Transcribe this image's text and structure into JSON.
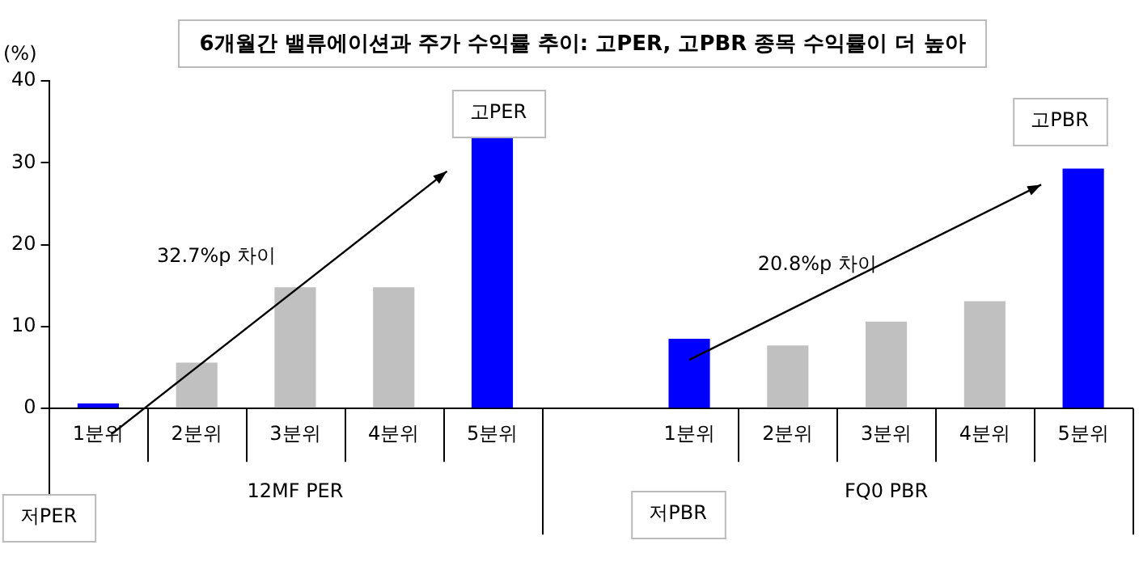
{
  "chart_data": {
    "type": "bar",
    "title": "6개월간 밸류에이션과 주가 수익률 추이: 고PER, 고PBR 종목 수익률이 더 높아",
    "ylabel": "(%)",
    "categories": [
      "1분위",
      "2분위",
      "3분위",
      "4분위",
      "5분위",
      null,
      "1분위",
      "2분위",
      "3분위",
      "4분위",
      "5분위"
    ],
    "values": [
      0.6,
      5.6,
      14.8,
      14.8,
      33.3,
      null,
      8.5,
      7.7,
      10.6,
      13.1,
      29.3
    ],
    "colors": [
      "#0000ff",
      "#c0c0c0",
      "#c0c0c0",
      "#c0c0c0",
      "#0000ff",
      "#c0c0c0",
      "#0000ff",
      "#c0c0c0",
      "#c0c0c0",
      "#c0c0c0",
      "#0000ff"
    ],
    "ylim": [
      0,
      40
    ],
    "yticks": [
      0,
      10,
      20,
      30,
      40
    ],
    "grid": false,
    "legend": false,
    "annotations": [
      "32.7%p 차이",
      "20.8%p 차이",
      "고PER",
      "고PBR",
      "저PER",
      "저PBR",
      "12MF PER",
      "FQ0 PBR"
    ]
  }
}
